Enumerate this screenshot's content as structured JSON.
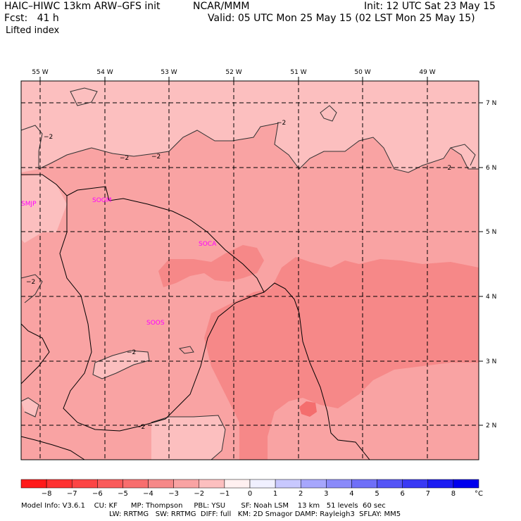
{
  "header": {
    "model": "HAIC–HIWC 13km ARW–GFS init",
    "org": "NCAR/MMM",
    "init": "Init: 12 UTC Sat 23 May 15",
    "fcst": "Fcst:   41 h",
    "valid": "Valid: 05 UTC Mon 25 May 15 (02 LST Mon 25 May 15)",
    "field": "Lifted index"
  },
  "map": {
    "lon_labels": [
      "55 W",
      "54 W",
      "53 W",
      "52 W",
      "51 W",
      "50 W",
      "49 W"
    ],
    "lat_labels": [
      "7 N",
      "6 N",
      "5 N",
      "4 N",
      "3 N",
      "2 N"
    ],
    "stations": [
      "SMJP",
      "SOGM",
      "SOCA",
      "SOOS"
    ],
    "contour_label": "−2",
    "colors": {
      "li_minus1_to_minus2": "#fcbfbf",
      "li_minus2_to_minus3": "#f9a3a3",
      "li_minus3_to_minus4": "#f68888"
    }
  },
  "colorbar": {
    "ticks": [
      "−8",
      "−7",
      "−6",
      "−5",
      "−4",
      "−3",
      "−2",
      "−1",
      "0",
      "1",
      "2",
      "3",
      "4",
      "5",
      "6",
      "7",
      "8"
    ],
    "unit": "°C",
    "colors": [
      "#ff1a1a",
      "#fe3131",
      "#fc4545",
      "#fa5a5a",
      "#f86e6e",
      "#f68888",
      "#f9a3a3",
      "#fcbfbf",
      "#fff0f0",
      "#f0f0ff",
      "#c8c8fe",
      "#a6a6fc",
      "#8a8afa",
      "#6f6ff8",
      "#5454f6",
      "#3939f4",
      "#1c1cf2",
      "#0000ee"
    ]
  },
  "footer": {
    "line1": "Model Info: V3.6.1    CU: KF      MP: Thompson     PBL: YSU       SF: Noah LSM    13 km   51 levels  60 sec",
    "line2": "LW: RRTMG   SW: RRTMG  DIFF: full   KM: 2D Smagor DAMP: Rayleigh3  SFLAY: MM5"
  }
}
